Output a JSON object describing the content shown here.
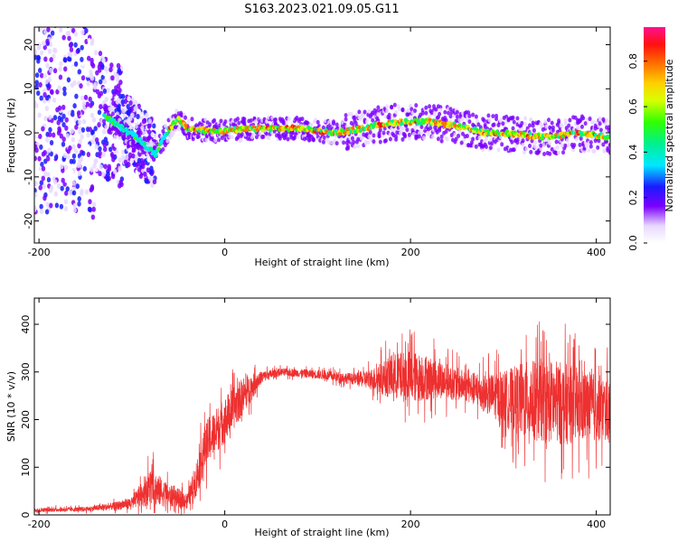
{
  "title": "S163.2023.021.09.05.G11",
  "chart_data": [
    {
      "type": "heatmap",
      "xlabel": "Height of straight line (km)",
      "ylabel": "Frequency (Hz)",
      "xlim": [
        -205,
        415
      ],
      "ylim": [
        -25,
        24
      ],
      "xticks": [
        -200,
        0,
        200,
        400
      ],
      "yticks": [
        -20,
        -10,
        0,
        10,
        20
      ],
      "colorbar": {
        "label": "Normalized spectral amplitude",
        "range": [
          0,
          0.95
        ],
        "ticks": [
          0.0,
          0.2,
          0.4,
          0.6,
          0.8
        ]
      },
      "ridge_km": [
        -205,
        -160,
        -130,
        -110,
        -95,
        -85,
        -75,
        -68,
        -60,
        -50,
        -40,
        -20,
        0,
        40,
        80,
        120,
        150,
        170,
        190,
        220,
        250,
        280,
        300,
        320,
        350,
        380,
        415
      ],
      "ridge_hz": [
        6,
        6,
        4,
        1,
        -1,
        -3,
        -5,
        -2,
        1,
        3,
        1,
        0.5,
        0.5,
        1,
        1,
        0,
        1,
        2,
        2.5,
        2.5,
        1.5,
        0,
        0,
        -0.5,
        -1,
        0,
        -1
      ]
    },
    {
      "type": "line",
      "xlabel": "Height of straight line (km)",
      "ylabel": "SNR (10 * v/v)",
      "xlim": [
        -205,
        415
      ],
      "ylim": [
        0,
        455
      ],
      "xticks": [
        -200,
        0,
        200,
        400
      ],
      "yticks": [
        0,
        100,
        200,
        300,
        400
      ],
      "color": "#ee3030",
      "envelope_km": [
        -205,
        -150,
        -120,
        -100,
        -80,
        -60,
        -40,
        -30,
        -20,
        0,
        20,
        40,
        60,
        100,
        140,
        160,
        180,
        200,
        230,
        260,
        280,
        300,
        320,
        340,
        360,
        380,
        400,
        415
      ],
      "envelope_mean": [
        10,
        12,
        18,
        25,
        60,
        40,
        30,
        80,
        150,
        200,
        250,
        290,
        300,
        295,
        285,
        285,
        290,
        290,
        285,
        270,
        255,
        245,
        240,
        240,
        235,
        230,
        225,
        220
      ],
      "envelope_spread": [
        5,
        6,
        10,
        15,
        50,
        30,
        20,
        50,
        60,
        60,
        50,
        15,
        10,
        12,
        15,
        30,
        60,
        70,
        50,
        40,
        50,
        70,
        100,
        110,
        110,
        100,
        90,
        80
      ]
    }
  ]
}
